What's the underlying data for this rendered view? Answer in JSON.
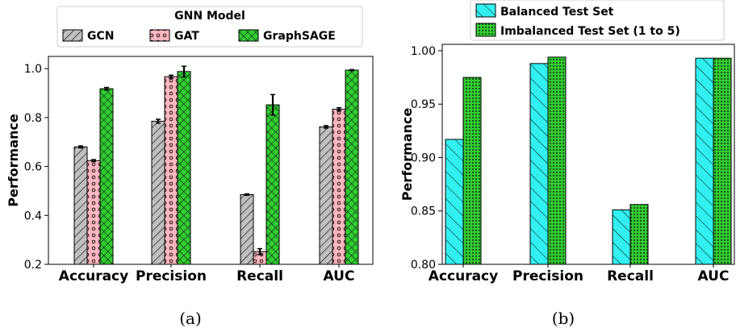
{
  "colors": {
    "gcn": "#bfbfbf",
    "gat": "#ffb6c1",
    "graphsage": "#33cc33",
    "balanced": "#33f0f0",
    "imbalanced": "#33cc33"
  },
  "chart_data": [
    {
      "type": "bar",
      "caption": "(a)",
      "ylabel": "Performance",
      "xlabel": "",
      "ylim": [
        0.2,
        1.05
      ],
      "yticks": [
        "0.2",
        "0.4",
        "0.6",
        "0.8",
        "1.0"
      ],
      "ytick_values": [
        0.2,
        0.4,
        0.6,
        0.8,
        1.0
      ],
      "categories": [
        "Accuracy",
        "Precision",
        "Recall",
        "AUC"
      ],
      "legend": {
        "title": "GNN Model",
        "placement": "top-center"
      },
      "series": [
        {
          "name": "GCN",
          "color_key": "gcn",
          "pattern": "hatch-diagonal",
          "values": [
            0.68,
            0.785,
            0.485,
            0.762
          ],
          "errors": [
            0.004,
            0.008,
            0.003,
            0.005
          ]
        },
        {
          "name": "GAT",
          "color_key": "gat",
          "pattern": "circles",
          "values": [
            0.624,
            0.967,
            0.252,
            0.834
          ],
          "errors": [
            0.004,
            0.006,
            0.012,
            0.006
          ]
        },
        {
          "name": "GraphSAGE",
          "color_key": "graphsage",
          "pattern": "crosshatch",
          "values": [
            0.918,
            0.988,
            0.852,
            0.994
          ],
          "errors": [
            0.005,
            0.022,
            0.042,
            0.002
          ]
        }
      ],
      "grid": false
    },
    {
      "type": "bar",
      "caption": "(b)",
      "ylabel": "Performance",
      "xlabel": "",
      "ylim": [
        0.8,
        1.006
      ],
      "yticks": [
        "0.80",
        "0.85",
        "0.90",
        "0.95",
        "1.00"
      ],
      "ytick_values": [
        0.8,
        0.85,
        0.9,
        0.95,
        1.0
      ],
      "categories": [
        "Accuracy",
        "Precision",
        "Recall",
        "AUC"
      ],
      "legend": {
        "title": "",
        "placement": "top-center"
      },
      "series": [
        {
          "name": "Balanced Test Set",
          "color_key": "balanced",
          "pattern": "hatch-backslash",
          "values": [
            0.917,
            0.988,
            0.851,
            0.993
          ]
        },
        {
          "name": "Imbalanced Test Set (1 to 5)",
          "color_key": "imbalanced",
          "pattern": "dots",
          "values": [
            0.975,
            0.994,
            0.856,
            0.993
          ]
        }
      ],
      "grid": false
    }
  ]
}
